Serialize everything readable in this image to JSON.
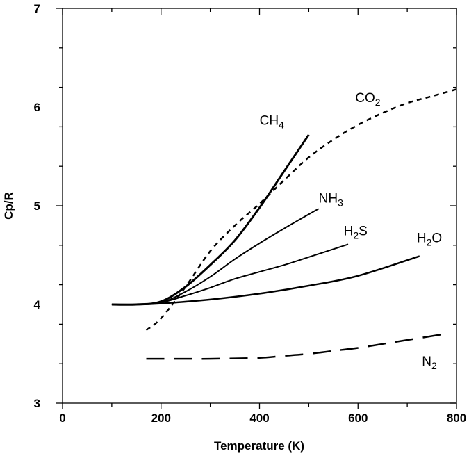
{
  "chart_data": {
    "type": "line",
    "title": "",
    "xlabel": "Temperature (K)",
    "ylabel": "Cp/R",
    "xlim": [
      0,
      800
    ],
    "ylim": [
      3,
      7
    ],
    "xticks": [
      "0",
      "200",
      "400",
      "600",
      "800"
    ],
    "yticks": [
      "3",
      "4",
      "5",
      "6",
      "7"
    ],
    "grid": false,
    "series": [
      {
        "name": "CH4",
        "label_main": "CH",
        "label_sub": "4",
        "style": "solid",
        "width": 3,
        "x": [
          100,
          150,
          200,
          250,
          300,
          350,
          400,
          450,
          500
        ],
        "y": [
          4.0,
          4.0,
          4.03,
          4.18,
          4.4,
          4.65,
          4.98,
          5.35,
          5.72
        ]
      },
      {
        "name": "NH3",
        "label_main": "NH",
        "label_sub": "3",
        "style": "solid",
        "width": 2,
        "x": [
          100,
          150,
          200,
          250,
          300,
          350,
          400,
          450,
          520
        ],
        "y": [
          4.0,
          4.0,
          4.02,
          4.13,
          4.28,
          4.46,
          4.62,
          4.77,
          4.97
        ]
      },
      {
        "name": "H2S",
        "label_main": "H",
        "label_sub": "2",
        "label_tail": "S",
        "style": "solid",
        "width": 2,
        "x": [
          100,
          150,
          200,
          250,
          300,
          350,
          400,
          450,
          500,
          580
        ],
        "y": [
          4.0,
          4.0,
          4.02,
          4.09,
          4.17,
          4.26,
          4.33,
          4.4,
          4.48,
          4.61
        ]
      },
      {
        "name": "H2O",
        "label_main": "H",
        "label_sub": "2",
        "label_tail": "O",
        "style": "solid",
        "width": 2.5,
        "x": [
          100,
          150,
          200,
          300,
          400,
          500,
          600,
          725
        ],
        "y": [
          4.0,
          4.0,
          4.01,
          4.05,
          4.11,
          4.19,
          4.29,
          4.49
        ]
      },
      {
        "name": "CO2",
        "label_main": "CO",
        "label_sub": "2",
        "style": "dashed",
        "width": 2.5,
        "x": [
          170,
          200,
          250,
          300,
          350,
          400,
          450,
          500,
          550,
          600,
          650,
          700,
          750,
          800
        ],
        "y": [
          3.74,
          3.86,
          4.18,
          4.54,
          4.8,
          5.02,
          5.26,
          5.49,
          5.67,
          5.82,
          5.94,
          6.04,
          6.11,
          6.18
        ]
      },
      {
        "name": "N2",
        "label_main": "N",
        "label_sub": "2",
        "style": "longdash",
        "width": 2.5,
        "x": [
          170,
          250,
          300,
          400,
          450,
          500,
          550,
          600,
          650,
          700,
          775
        ],
        "y": [
          3.45,
          3.45,
          3.45,
          3.46,
          3.48,
          3.5,
          3.53,
          3.56,
          3.6,
          3.64,
          3.7
        ]
      }
    ],
    "labels_at": {
      "CH4": [
        425,
        5.82
      ],
      "NH3": [
        545,
        5.03
      ],
      "H2S": [
        595,
        4.7
      ],
      "H2O": [
        745,
        4.63
      ],
      "CO2": [
        620,
        6.05
      ],
      "N2": [
        745,
        3.38
      ]
    }
  }
}
